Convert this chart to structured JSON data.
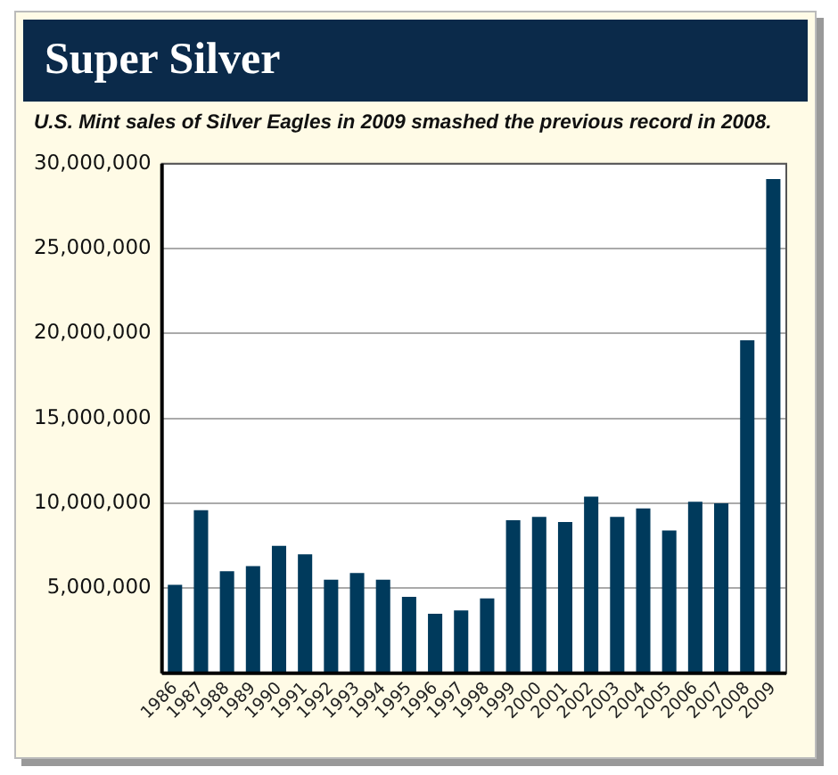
{
  "chart_data": {
    "type": "bar",
    "title": "Super Silver",
    "subtitle": "U.S. Mint sales of Silver Eagles in 2009 smashed the previous record in 2008.",
    "categories": [
      "1986",
      "1987",
      "1988",
      "1989",
      "1990",
      "1991",
      "1992",
      "1993",
      "1994",
      "1995",
      "1996",
      "1997",
      "1998",
      "1999",
      "2000",
      "2001",
      "2002",
      "2003",
      "2004",
      "2005",
      "2006",
      "2007",
      "2008",
      "2009"
    ],
    "values": [
      5200000,
      9600000,
      6000000,
      6300000,
      7500000,
      7000000,
      5500000,
      5900000,
      5500000,
      4500000,
      3500000,
      3700000,
      4400000,
      9000000,
      9200000,
      8900000,
      10400000,
      9200000,
      9700000,
      8400000,
      10100000,
      10000000,
      19600000,
      29100000
    ],
    "color": "#003a5c",
    "ylim": [
      0,
      30000000
    ],
    "yticks": [
      {
        "value": 0,
        "label": null
      },
      {
        "value": 5000000,
        "label": "5,000,000"
      },
      {
        "value": 10000000,
        "label": "10,000,000"
      },
      {
        "value": 15000000,
        "label": "15,000,000"
      },
      {
        "value": 20000000,
        "label": "20,000,000"
      },
      {
        "value": 25000000,
        "label": "25,000,000"
      },
      {
        "value": 30000000,
        "label": "30,000,000"
      }
    ],
    "grid": "y",
    "legend": false
  }
}
